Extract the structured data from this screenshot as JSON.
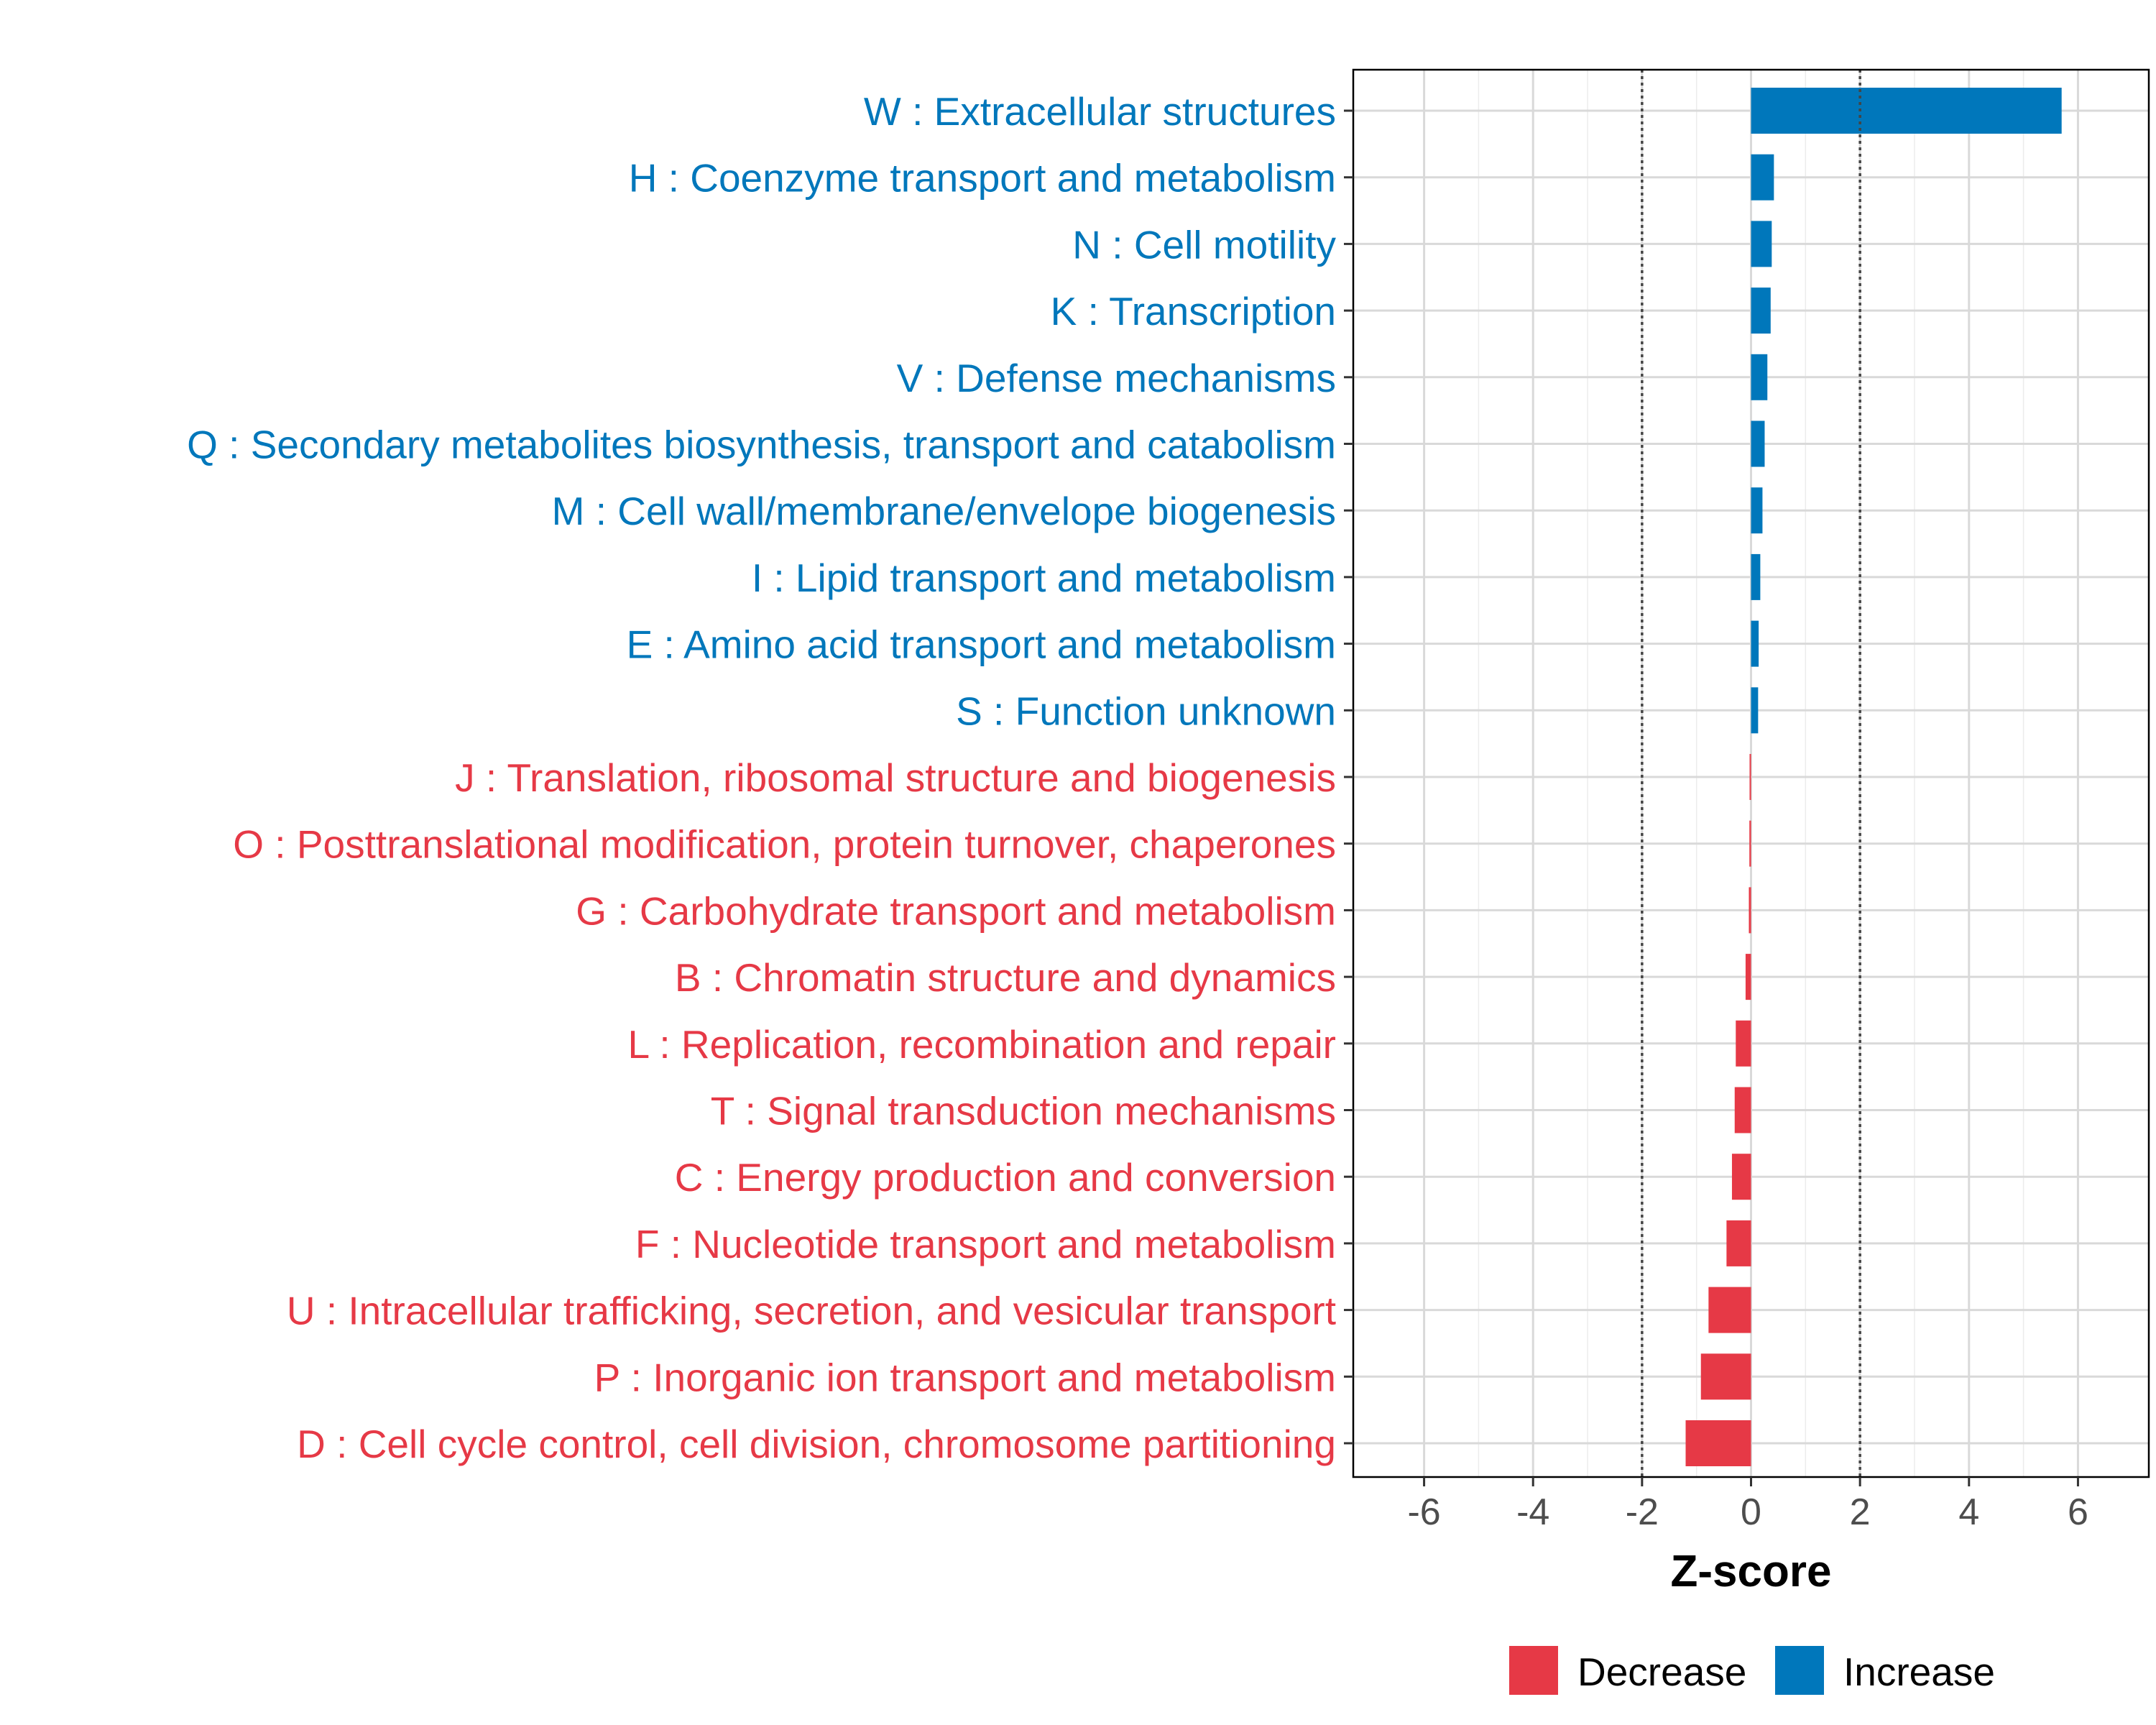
{
  "chart_data": {
    "type": "bar",
    "orientation": "horizontal",
    "title": "",
    "xlabel": "Z-score",
    "ylabel": "",
    "xlim": [
      -7.3,
      7.3
    ],
    "x_ticks": [
      -6,
      -4,
      -2,
      0,
      2,
      4,
      6
    ],
    "x_tick_labels": [
      "-6",
      "-4",
      "-2",
      "0",
      "2",
      "4",
      "6"
    ],
    "threshold_lines": [
      -2,
      2
    ],
    "grid": true,
    "legend_position": "bottom",
    "colors": {
      "Decrease": "#e63946",
      "Increase": "#0077bb"
    },
    "legend": [
      {
        "label": "Decrease",
        "color": "#e63946"
      },
      {
        "label": "Increase",
        "color": "#0077bb"
      }
    ],
    "categories": [
      "W : Extracellular structures",
      "H : Coenzyme transport and metabolism",
      "N : Cell motility",
      "K : Transcription",
      "V : Defense mechanisms",
      "Q : Secondary metabolites biosynthesis, transport and catabolism",
      "M : Cell wall/membrane/envelope biogenesis",
      "I : Lipid transport and metabolism",
      "E : Amino acid transport and metabolism",
      "S : Function unknown",
      "J : Translation, ribosomal structure and biogenesis",
      "O : Posttranslational modification, protein turnover, chaperones",
      "G : Carbohydrate transport and metabolism",
      "B : Chromatin structure and dynamics",
      "L : Replication, recombination and repair",
      "T : Signal transduction mechanisms",
      "C : Energy production and conversion",
      "F : Nucleotide transport and metabolism",
      "U : Intracellular trafficking, secretion, and vesicular transport",
      "P : Inorganic ion transport and metabolism",
      "D : Cell cycle control, cell division, chromosome partitioning"
    ],
    "values": [
      5.7,
      0.42,
      0.38,
      0.36,
      0.3,
      0.25,
      0.21,
      0.17,
      0.14,
      0.13,
      -0.02,
      -0.03,
      -0.04,
      -0.1,
      -0.28,
      -0.3,
      -0.35,
      -0.45,
      -0.78,
      -0.92,
      -1.2
    ],
    "groups": [
      "Increase",
      "Increase",
      "Increase",
      "Increase",
      "Increase",
      "Increase",
      "Increase",
      "Increase",
      "Increase",
      "Increase",
      "Decrease",
      "Decrease",
      "Decrease",
      "Decrease",
      "Decrease",
      "Decrease",
      "Decrease",
      "Decrease",
      "Decrease",
      "Decrease",
      "Decrease"
    ]
  }
}
